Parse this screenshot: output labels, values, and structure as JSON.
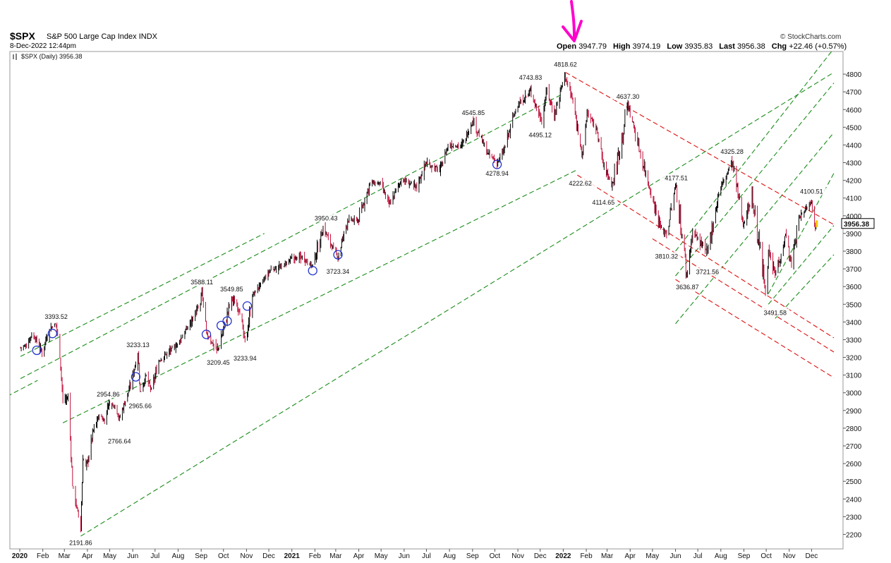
{
  "header": {
    "symbol": "$SPX",
    "name": "S&P 500 Large Cap Index",
    "exchange": "INDX",
    "datetime": "8-Dec-2022 12:44pm",
    "brand": "© StockCharts.com",
    "open_label": "Open",
    "open_value": "3947.79",
    "high_label": "High",
    "high_value": "3974.19",
    "low_label": "Low",
    "low_value": "3935.83",
    "last_label": "Last",
    "last_value": "3956.38",
    "chg_label": "Chg",
    "chg_value": "+22.46 (+0.57%)",
    "legend": "$SPX (Daily) 3956.38",
    "last_price_tag": "3956.38"
  },
  "colors": {
    "up": "#000000",
    "down": "#c0103a",
    "green_channel": "#1a8c1a",
    "red_channel": "#e01010",
    "circle": "#2233cc",
    "arrow": "#ff00cc",
    "price_tag": "#f5c400"
  },
  "chart_data": {
    "type": "line",
    "title": "$SPX S&P 500 Large Cap Index INDX",
    "ylim": [
      2150,
      4900
    ],
    "yticks": [
      2200,
      2300,
      2400,
      2500,
      2600,
      2700,
      2800,
      2900,
      3000,
      3100,
      3200,
      3300,
      3400,
      3500,
      3600,
      3700,
      3800,
      3900,
      4000,
      4100,
      4200,
      4300,
      4400,
      4500,
      4600,
      4700,
      4800
    ],
    "x_ticks": [
      {
        "label": "2020",
        "date": "2020-01-01",
        "year": true
      },
      {
        "label": "Feb",
        "date": "2020-02-01"
      },
      {
        "label": "Mar",
        "date": "2020-03-01"
      },
      {
        "label": "Apr",
        "date": "2020-04-01"
      },
      {
        "label": "May",
        "date": "2020-05-01"
      },
      {
        "label": "Jun",
        "date": "2020-06-01"
      },
      {
        "label": "Jul",
        "date": "2020-07-01"
      },
      {
        "label": "Aug",
        "date": "2020-08-01"
      },
      {
        "label": "Sep",
        "date": "2020-09-01"
      },
      {
        "label": "Oct",
        "date": "2020-10-01"
      },
      {
        "label": "Nov",
        "date": "2020-11-01"
      },
      {
        "label": "Dec",
        "date": "2020-12-01"
      },
      {
        "label": "2021",
        "date": "2021-01-01",
        "year": true
      },
      {
        "label": "Feb",
        "date": "2021-02-01"
      },
      {
        "label": "Mar",
        "date": "2021-03-01"
      },
      {
        "label": "Apr",
        "date": "2021-04-01"
      },
      {
        "label": "May",
        "date": "2021-05-01"
      },
      {
        "label": "Jun",
        "date": "2021-06-01"
      },
      {
        "label": "Jul",
        "date": "2021-07-01"
      },
      {
        "label": "Aug",
        "date": "2021-08-01"
      },
      {
        "label": "Sep",
        "date": "2021-09-01"
      },
      {
        "label": "Oct",
        "date": "2021-10-01"
      },
      {
        "label": "Nov",
        "date": "2021-11-01"
      },
      {
        "label": "Dec",
        "date": "2021-12-01"
      },
      {
        "label": "2022",
        "date": "2022-01-01",
        "year": true
      },
      {
        "label": "Feb",
        "date": "2022-02-01"
      },
      {
        "label": "Mar",
        "date": "2022-03-01"
      },
      {
        "label": "Apr",
        "date": "2022-04-01"
      },
      {
        "label": "May",
        "date": "2022-05-01"
      },
      {
        "label": "Jun",
        "date": "2022-06-01"
      },
      {
        "label": "Jul",
        "date": "2022-07-01"
      },
      {
        "label": "Aug",
        "date": "2022-08-01"
      },
      {
        "label": "Sep",
        "date": "2022-09-01"
      },
      {
        "label": "Oct",
        "date": "2022-10-01"
      },
      {
        "label": "Nov",
        "date": "2022-11-01"
      },
      {
        "label": "Dec",
        "date": "2022-12-01"
      }
    ],
    "series": [
      {
        "points": [
          [
            "2020-01-02",
            3257
          ],
          [
            "2020-01-10",
            3265
          ],
          [
            "2020-01-17",
            3330
          ],
          [
            "2020-01-24",
            3295
          ],
          [
            "2020-01-31",
            3225
          ],
          [
            "2020-02-07",
            3327
          ],
          [
            "2020-02-14",
            3380
          ],
          [
            "2020-02-19",
            3386
          ],
          [
            "2020-02-24",
            3225
          ],
          [
            "2020-02-28",
            2954
          ],
          [
            "2020-03-06",
            2972
          ],
          [
            "2020-03-09",
            2746
          ],
          [
            "2020-03-12",
            2480
          ],
          [
            "2020-03-16",
            2386
          ],
          [
            "2020-03-20",
            2304
          ],
          [
            "2020-03-23",
            2237
          ],
          [
            "2020-03-26",
            2630
          ],
          [
            "2020-03-31",
            2584
          ],
          [
            "2020-04-09",
            2789
          ],
          [
            "2020-04-17",
            2874
          ],
          [
            "2020-04-24",
            2836
          ],
          [
            "2020-04-29",
            2939
          ],
          [
            "2020-05-08",
            2929
          ],
          [
            "2020-05-14",
            2852
          ],
          [
            "2020-05-22",
            2955
          ],
          [
            "2020-05-29",
            3044
          ],
          [
            "2020-06-08",
            3232
          ],
          [
            "2020-06-11",
            3002
          ],
          [
            "2020-06-19",
            3097
          ],
          [
            "2020-06-26",
            3009
          ],
          [
            "2020-07-06",
            3179
          ],
          [
            "2020-07-17",
            3224
          ],
          [
            "2020-07-31",
            3271
          ],
          [
            "2020-08-14",
            3372
          ],
          [
            "2020-08-31",
            3500
          ],
          [
            "2020-09-02",
            3580
          ],
          [
            "2020-09-08",
            3331
          ],
          [
            "2020-09-23",
            3237
          ],
          [
            "2020-10-12",
            3534
          ],
          [
            "2020-10-23",
            3465
          ],
          [
            "2020-10-30",
            3270
          ],
          [
            "2020-11-09",
            3550
          ],
          [
            "2020-11-24",
            3635
          ],
          [
            "2020-12-04",
            3699
          ],
          [
            "2020-12-18",
            3709
          ],
          [
            "2020-12-31",
            3756
          ],
          [
            "2021-01-15",
            3768
          ],
          [
            "2021-01-29",
            3714
          ],
          [
            "2021-02-12",
            3934
          ],
          [
            "2021-02-26",
            3811
          ],
          [
            "2021-03-04",
            3768
          ],
          [
            "2021-03-17",
            3974
          ],
          [
            "2021-03-31",
            3973
          ],
          [
            "2021-04-16",
            4185
          ],
          [
            "2021-04-30",
            4181
          ],
          [
            "2021-05-12",
            4063
          ],
          [
            "2021-05-28",
            4204
          ],
          [
            "2021-06-18",
            4166
          ],
          [
            "2021-06-30",
            4297
          ],
          [
            "2021-07-19",
            4258
          ],
          [
            "2021-07-30",
            4395
          ],
          [
            "2021-08-18",
            4400
          ],
          [
            "2021-08-31",
            4523
          ],
          [
            "2021-09-02",
            4537
          ],
          [
            "2021-09-20",
            4358
          ],
          [
            "2021-10-04",
            4300
          ],
          [
            "2021-10-13",
            4363
          ],
          [
            "2021-10-29",
            4605
          ],
          [
            "2021-11-18",
            4704
          ],
          [
            "2021-11-30",
            4567
          ],
          [
            "2021-12-03",
            4538
          ],
          [
            "2021-12-10",
            4712
          ],
          [
            "2021-12-20",
            4568
          ],
          [
            "2022-01-03",
            4797
          ],
          [
            "2022-01-13",
            4660
          ],
          [
            "2022-01-24",
            4410
          ],
          [
            "2022-01-27",
            4326
          ],
          [
            "2022-02-02",
            4589
          ],
          [
            "2022-02-16",
            4475
          ],
          [
            "2022-02-24",
            4288
          ],
          [
            "2022-03-08",
            4170
          ],
          [
            "2022-03-29",
            4631
          ],
          [
            "2022-04-12",
            4397
          ],
          [
            "2022-04-29",
            4132
          ],
          [
            "2022-05-12",
            3930
          ],
          [
            "2022-05-20",
            3901
          ],
          [
            "2022-06-02",
            4176
          ],
          [
            "2022-06-16",
            3666
          ],
          [
            "2022-06-24",
            3912
          ],
          [
            "2022-07-14",
            3790
          ],
          [
            "2022-07-29",
            4130
          ],
          [
            "2022-08-16",
            4305
          ],
          [
            "2022-08-31",
            3955
          ],
          [
            "2022-09-12",
            4110
          ],
          [
            "2022-09-30",
            3585
          ],
          [
            "2022-10-04",
            3791
          ],
          [
            "2022-10-13",
            3669
          ],
          [
            "2022-10-28",
            3901
          ],
          [
            "2022-11-03",
            3720
          ],
          [
            "2022-11-15",
            3991
          ],
          [
            "2022-11-30",
            4080
          ],
          [
            "2022-12-01",
            4076
          ],
          [
            "2022-12-06",
            3941
          ],
          [
            "2022-12-08",
            3956
          ]
        ]
      }
    ],
    "annotations": [
      {
        "label": "3393.52",
        "date": "2020-02-19",
        "value": 3393.52,
        "pos": "above"
      },
      {
        "label": "2191.86",
        "date": "2020-03-23",
        "value": 2191.86,
        "pos": "below"
      },
      {
        "label": "2954.86",
        "date": "2020-04-29",
        "value": 2954.86,
        "pos": "above"
      },
      {
        "label": "2766.64",
        "date": "2020-05-14",
        "value": 2766.64,
        "pos": "below"
      },
      {
        "label": "3233.13",
        "date": "2020-06-08",
        "value": 3233.13,
        "pos": "above"
      },
      {
        "label": "2965.66",
        "date": "2020-06-11",
        "value": 2965.66,
        "pos": "below"
      },
      {
        "label": "3588.11",
        "date": "2020-09-02",
        "value": 3588.11,
        "pos": "above"
      },
      {
        "label": "3209.45",
        "date": "2020-09-24",
        "value": 3209.45,
        "pos": "below"
      },
      {
        "label": "3549.85",
        "date": "2020-10-12",
        "value": 3549.85,
        "pos": "above"
      },
      {
        "label": "3233.94",
        "date": "2020-10-30",
        "value": 3233.94,
        "pos": "below"
      },
      {
        "label": "3950.43",
        "date": "2021-02-16",
        "value": 3950.43,
        "pos": "above"
      },
      {
        "label": "3723.34",
        "date": "2021-03-04",
        "value": 3723.34,
        "pos": "below"
      },
      {
        "label": "4545.85",
        "date": "2021-09-02",
        "value": 4545.85,
        "pos": "above"
      },
      {
        "label": "4278.94",
        "date": "2021-10-04",
        "value": 4278.94,
        "pos": "below"
      },
      {
        "label": "4743.83",
        "date": "2021-11-18",
        "value": 4743.83,
        "pos": "above"
      },
      {
        "label": "4495.12",
        "date": "2021-12-01",
        "value": 4495.12,
        "pos": "below"
      },
      {
        "label": "4818.62",
        "date": "2022-01-04",
        "value": 4818.62,
        "pos": "above"
      },
      {
        "label": "4222.62",
        "date": "2022-01-24",
        "value": 4222.62,
        "pos": "below"
      },
      {
        "label": "4114.65",
        "date": "2022-02-24",
        "value": 4114.65,
        "pos": "below"
      },
      {
        "label": "4637.30",
        "date": "2022-03-29",
        "value": 4637.3,
        "pos": "above"
      },
      {
        "label": "3810.32",
        "date": "2022-05-20",
        "value": 3810.32,
        "pos": "below"
      },
      {
        "label": "4177.51",
        "date": "2022-06-02",
        "value": 4177.51,
        "pos": "above"
      },
      {
        "label": "3636.87",
        "date": "2022-06-17",
        "value": 3636.87,
        "pos": "below"
      },
      {
        "label": "3721.56",
        "date": "2022-07-14",
        "value": 3721.56,
        "pos": "below"
      },
      {
        "label": "4325.28",
        "date": "2022-08-16",
        "value": 4325.28,
        "pos": "above"
      },
      {
        "label": "3491.58",
        "date": "2022-10-13",
        "value": 3491.58,
        "pos": "below"
      },
      {
        "label": "4100.51",
        "date": "2022-12-01",
        "value": 4100.51,
        "pos": "above"
      }
    ],
    "circled_points": [
      [
        "2020-01-24",
        3240
      ],
      [
        "2020-02-14",
        3335
      ],
      [
        "2020-06-05",
        3090
      ],
      [
        "2020-09-08",
        3330
      ],
      [
        "2020-09-28",
        3380
      ],
      [
        "2020-10-06",
        3405
      ],
      [
        "2020-11-02",
        3490
      ],
      [
        "2021-01-29",
        3690
      ],
      [
        "2021-03-04",
        3780
      ],
      [
        "2021-10-04",
        4290
      ]
    ],
    "trendlines": [
      {
        "color": "green",
        "points": [
          [
            "2020-01-02",
            3205
          ],
          [
            "2020-11-25",
            3900
          ]
        ]
      },
      {
        "color": "green",
        "points": [
          [
            "2020-01-02",
            3080
          ],
          [
            "2022-01-01",
            4690
          ]
        ]
      },
      {
        "color": "green",
        "points": [
          [
            "2019-12-15",
            2980
          ],
          [
            "2020-01-25",
            3070
          ]
        ]
      },
      {
        "color": "green",
        "points": [
          [
            "2020-02-28",
            2830
          ],
          [
            "2022-01-20",
            4260
          ]
        ]
      },
      {
        "color": "green",
        "points": [
          [
            "2020-03-23",
            2190
          ],
          [
            "2022-12-31",
            4810
          ]
        ]
      },
      {
        "color": "green",
        "points": [
          [
            "2022-06-01",
            3800
          ],
          [
            "2022-12-31",
            4945
          ]
        ]
      },
      {
        "color": "green",
        "points": [
          [
            "2022-06-01",
            3660
          ],
          [
            "2022-12-31",
            4750
          ]
        ]
      },
      {
        "color": "green",
        "points": [
          [
            "2022-06-01",
            3390
          ],
          [
            "2022-12-31",
            4470
          ]
        ]
      },
      {
        "color": "green",
        "points": [
          [
            "2022-10-04",
            3560
          ],
          [
            "2022-12-31",
            4240
          ]
        ]
      },
      {
        "color": "green",
        "points": [
          [
            "2022-10-04",
            3500
          ],
          [
            "2022-12-31",
            3945
          ]
        ]
      },
      {
        "color": "green",
        "points": [
          [
            "2022-10-13",
            3420
          ],
          [
            "2022-12-31",
            3780
          ]
        ]
      },
      {
        "color": "red",
        "points": [
          [
            "2022-01-04",
            4810
          ],
          [
            "2022-12-31",
            3950
          ]
        ]
      },
      {
        "color": "red",
        "points": [
          [
            "2022-01-20",
            4230
          ],
          [
            "2022-12-31",
            3310
          ]
        ]
      },
      {
        "color": "red",
        "points": [
          [
            "2022-05-01",
            3870
          ],
          [
            "2022-12-31",
            3230
          ]
        ]
      },
      {
        "color": "red",
        "points": [
          [
            "2022-06-01",
            3640
          ],
          [
            "2022-12-31",
            3085
          ]
        ]
      }
    ]
  }
}
